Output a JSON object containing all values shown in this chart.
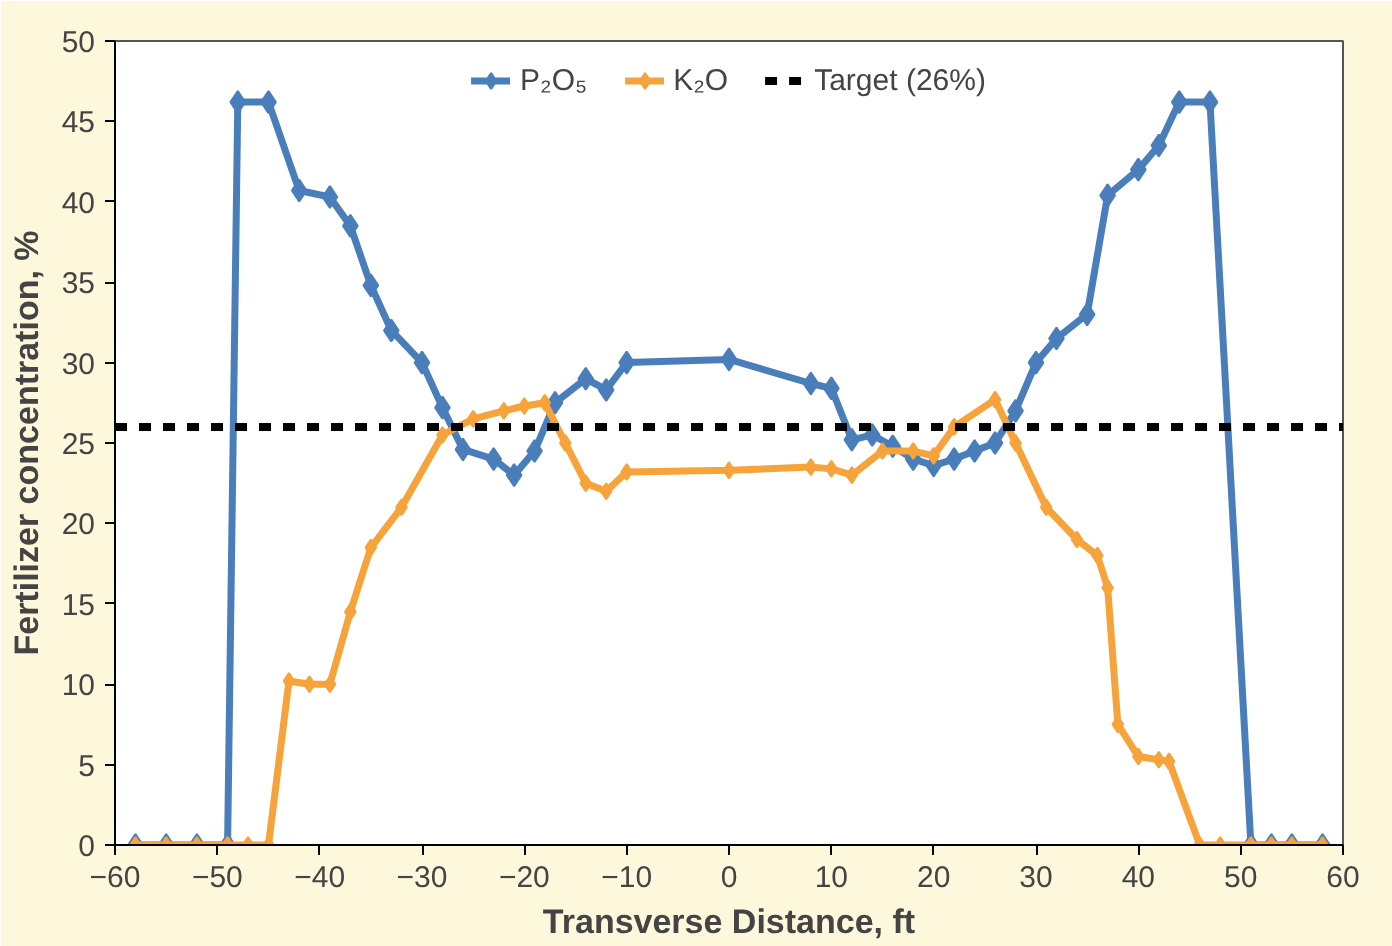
{
  "chart_data": {
    "type": "line",
    "xlabel": "Transverse Distance, ft",
    "ylabel": "Fertilizer concentration, %",
    "xlim": [
      -60,
      60
    ],
    "xticks": [
      -60,
      -50,
      -40,
      -30,
      -20,
      -10,
      0,
      10,
      20,
      30,
      40,
      50,
      60
    ],
    "ylim": [
      0,
      50
    ],
    "yticks": [
      0,
      5,
      10,
      15,
      20,
      25,
      30,
      35,
      40,
      45,
      50
    ],
    "grid": false,
    "legend": "top",
    "marker": "diamond",
    "line_style": "solid",
    "series": [
      {
        "name": "P₂O₅",
        "color": "#4a7ebb",
        "x": [
          -58,
          -55,
          -52,
          -49,
          -48,
          -45,
          -42,
          -39,
          -37,
          -35,
          -33,
          -30,
          -28,
          -26,
          -23,
          -21,
          -19,
          -17,
          -14,
          -12,
          -10,
          0,
          8,
          10,
          12,
          14,
          16,
          18,
          20,
          22,
          24,
          26,
          28,
          30,
          32,
          35,
          37,
          40,
          42,
          44,
          47,
          51,
          53,
          55,
          58
        ],
        "values": [
          0,
          0,
          0,
          0,
          46.2,
          46.2,
          40.7,
          40.3,
          38.5,
          34.8,
          32,
          30,
          27.2,
          24.6,
          24,
          23,
          24.5,
          27.5,
          29,
          28.3,
          30,
          30.2,
          28.7,
          28.4,
          25.2,
          25.5,
          24.8,
          24,
          23.6,
          24,
          24.5,
          25,
          27,
          30,
          31.5,
          33,
          40.4,
          42,
          43.5,
          46.2,
          46.2,
          0,
          0,
          0,
          0
        ]
      },
      {
        "name": "K₂O",
        "color": "#f7a33b",
        "x": [
          -58,
          -55,
          -52,
          -49,
          -47,
          -45,
          -43,
          -41,
          -39,
          -37,
          -35,
          -32,
          -28,
          -25,
          -22,
          -20,
          -18,
          -16,
          -14,
          -12,
          -10,
          0,
          8,
          10,
          12,
          15,
          18,
          20,
          22,
          26,
          28,
          31,
          34,
          36,
          37,
          38,
          40,
          42,
          43,
          46,
          48,
          51,
          53,
          55,
          58
        ],
        "values": [
          0,
          0,
          0,
          0,
          0,
          0,
          10.2,
          10,
          10,
          14.5,
          18.5,
          21,
          25.5,
          26.5,
          27,
          27.3,
          27.5,
          25,
          22.5,
          22,
          23.2,
          23.3,
          23.5,
          23.4,
          23,
          24.5,
          24.5,
          24.2,
          26,
          27.7,
          25,
          21,
          19,
          18,
          16,
          7.5,
          5.5,
          5.3,
          5.2,
          0,
          0,
          0,
          0,
          0,
          0
        ]
      }
    ],
    "ref_lines": [
      {
        "axis": "y",
        "value": 26,
        "label": "Target (26%)",
        "color": "#000000",
        "line_style": "dashed"
      }
    ]
  }
}
